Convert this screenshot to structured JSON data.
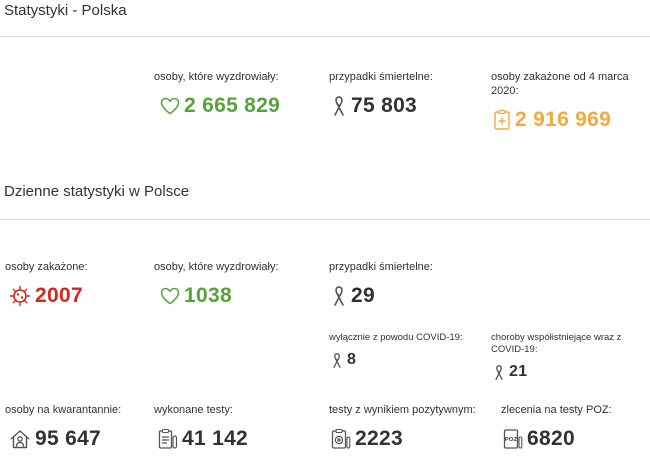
{
  "sections": {
    "overall_title": "Statystyki - Polska",
    "daily_title": "Dzienne statystyki w Polsce"
  },
  "overall": {
    "recovered": {
      "label": "osoby, które wyzdrowiały:",
      "value": "2 665 829"
    },
    "deaths": {
      "label": "przypadki śmiertelne:",
      "value": "75 803"
    },
    "infected": {
      "label": "osoby zakażone od 4 marca 2020:",
      "value": "2 916 969"
    }
  },
  "daily": {
    "infected": {
      "label": "osoby zakażone:",
      "value": "2007"
    },
    "recovered": {
      "label": "osoby, które wyzdrowiały:",
      "value": "1038"
    },
    "deaths": {
      "label": "przypadki śmiertelne:",
      "value": "29"
    },
    "deaths_covid_only": {
      "label": "wyłącznie z powodu COVID-19:",
      "value": "8"
    },
    "deaths_comorbidities": {
      "label": "choroby współistniejące wraz z COVID-19:",
      "value": "21"
    },
    "quarantine": {
      "label": "osoby na kwarantannie:",
      "value": "95 647"
    },
    "tests": {
      "label": "wykonane testy:",
      "value": "41 142"
    },
    "positive_tests": {
      "label": "testy z wynikiem pozytywnym:",
      "value": "2223"
    },
    "poz_orders": {
      "label": "zlecenia na testy POZ:",
      "value": "6820"
    }
  },
  "icons": {
    "heart": "heart-icon",
    "ribbon": "ribbon-icon",
    "medical_doc": "medical-document-icon",
    "virus": "virus-icon",
    "house_person": "home-quarantine-icon",
    "clipboard": "test-clipboard-icon",
    "positive_doc": "positive-test-icon",
    "poz": "poz-order-icon",
    "poz_text": "POZ"
  },
  "colors": {
    "green": "#56a33b",
    "orange": "#f3a93c",
    "red": "#d9261c",
    "text": "#323232"
  }
}
